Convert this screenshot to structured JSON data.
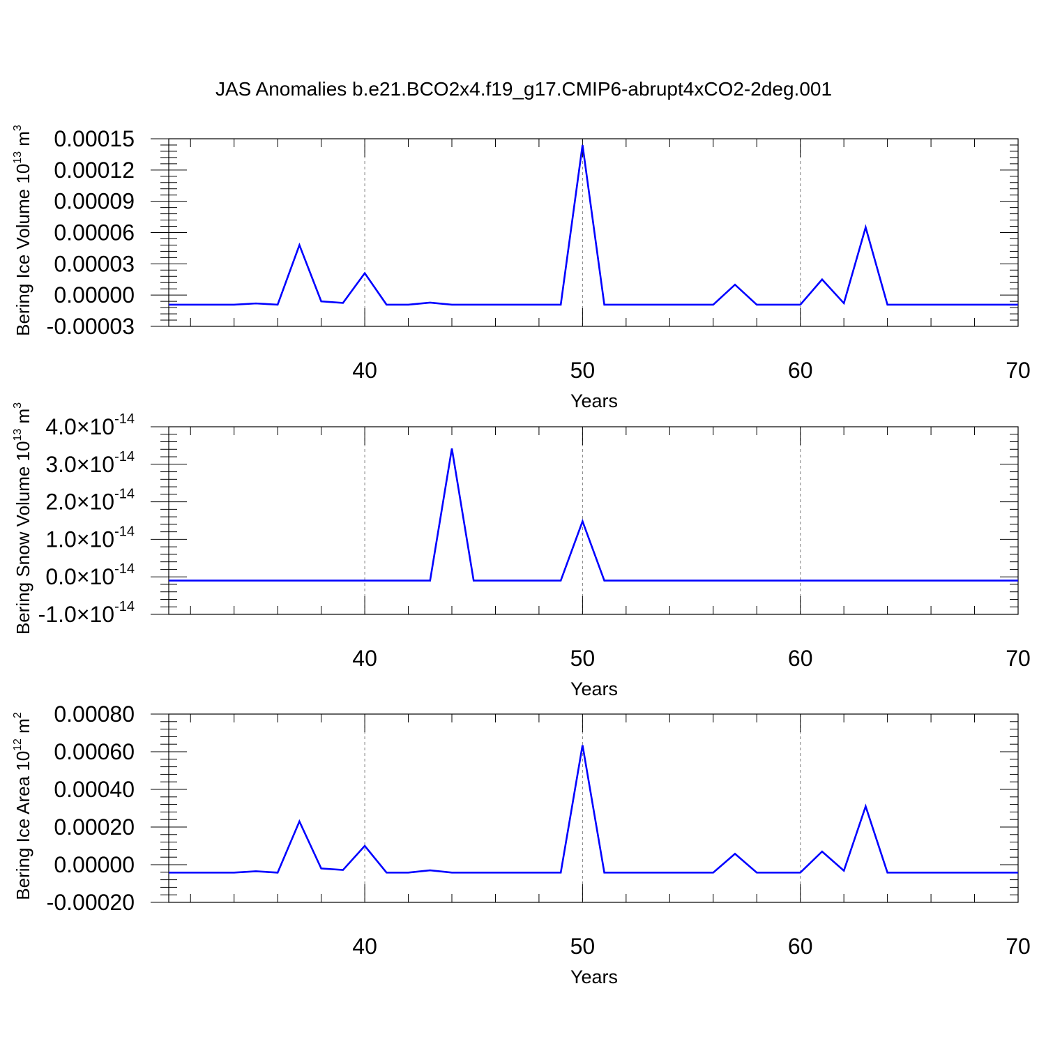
{
  "title": "JAS Anomalies b.e21.BCO2x4.f19_g17.CMIP6-abrupt4xCO2-2deg.001",
  "colors": {
    "line": "#0000ff",
    "axis": "#000000",
    "grid": "#808080"
  },
  "chart_data": [
    {
      "type": "line",
      "ylabel": "Bering Ice Volume 10",
      "ylabel_sup": "13",
      "ylabel_unit": " m",
      "ylabel_unit_sup": "3",
      "xlabel": "Years",
      "xlim": [
        31,
        70
      ],
      "ylim": [
        -3e-05,
        0.00015
      ],
      "xticks": [
        "40",
        "50",
        "60",
        "70"
      ],
      "yticks": [
        "-0.00003",
        "0.00000",
        "0.00003",
        "0.00006",
        "0.00009",
        "0.00012",
        "0.00015"
      ],
      "grid_x": [
        40,
        50,
        60
      ],
      "x": [
        31,
        32,
        33,
        34,
        35,
        36,
        37,
        38,
        39,
        40,
        41,
        42,
        43,
        44,
        45,
        46,
        47,
        48,
        49,
        50,
        51,
        52,
        53,
        54,
        55,
        56,
        57,
        58,
        59,
        60,
        61,
        62,
        63,
        64,
        65,
        66,
        67,
        68,
        69,
        70
      ],
      "series": [
        {
          "values": [
            -9.2e-06,
            -9.2e-06,
            -9.2e-06,
            -9.2e-06,
            -8e-06,
            -9.2e-06,
            4.8e-05,
            -6e-06,
            -7.5e-06,
            2.1e-05,
            -9.2e-06,
            -9.2e-06,
            -7.2e-06,
            -9.2e-06,
            -9.2e-06,
            -9.2e-06,
            -9.2e-06,
            -9.2e-06,
            -9.2e-06,
            0.000144,
            -9.2e-06,
            -9.2e-06,
            -9.2e-06,
            -9.2e-06,
            -9.2e-06,
            -9.2e-06,
            1e-05,
            -9.2e-06,
            -9.2e-06,
            -9.2e-06,
            1.5e-05,
            -7.8e-06,
            6.5e-05,
            -9.2e-06,
            -9.2e-06,
            -9.2e-06,
            -9.2e-06,
            -9.2e-06,
            -9.2e-06,
            -9.2e-06
          ]
        }
      ]
    },
    {
      "type": "line",
      "ylabel": "Bering Snow Volume 10",
      "ylabel_sup": "13",
      "ylabel_unit": " m",
      "ylabel_unit_sup": "3",
      "xlabel": "Years",
      "xlim": [
        31,
        70
      ],
      "ylim": [
        -1e-14,
        4e-14
      ],
      "xticks": [
        "40",
        "50",
        "60",
        "70"
      ],
      "yticks": [
        {
          "mant": "-1.0",
          "exp": "-14"
        },
        {
          "mant": "0.0",
          "exp": "-14"
        },
        {
          "mant": "1.0",
          "exp": "-14"
        },
        {
          "mant": "2.0",
          "exp": "-14"
        },
        {
          "mant": "3.0",
          "exp": "-14"
        },
        {
          "mant": "4.0",
          "exp": "-14"
        }
      ],
      "grid_x": [
        40,
        50,
        60
      ],
      "x": [
        31,
        32,
        33,
        34,
        35,
        36,
        37,
        38,
        39,
        40,
        41,
        42,
        43,
        44,
        45,
        46,
        47,
        48,
        49,
        50,
        51,
        52,
        53,
        54,
        55,
        56,
        57,
        58,
        59,
        60,
        61,
        62,
        63,
        64,
        65,
        66,
        67,
        68,
        69,
        70
      ],
      "series": [
        {
          "values": [
            -1e-15,
            -1e-15,
            -1e-15,
            -1e-15,
            -1e-15,
            -1e-15,
            -1e-15,
            -1e-15,
            -1e-15,
            -1e-15,
            -1e-15,
            -1e-15,
            -1e-15,
            3.42e-14,
            -1e-15,
            -1e-15,
            -1e-15,
            -1e-15,
            -1e-15,
            1.48e-14,
            -1e-15,
            -1e-15,
            -1e-15,
            -1e-15,
            -1e-15,
            -1e-15,
            -1e-15,
            -1e-15,
            -1e-15,
            -1e-15,
            -1e-15,
            -1e-15,
            -1e-15,
            -1e-15,
            -1e-15,
            -1e-15,
            -1e-15,
            -1e-15,
            -1e-15,
            -1e-15
          ]
        }
      ]
    },
    {
      "type": "line",
      "ylabel": "Bering Ice Area 10",
      "ylabel_sup": "12",
      "ylabel_unit": " m",
      "ylabel_unit_sup": "2",
      "xlabel": "Years",
      "xlim": [
        31,
        70
      ],
      "ylim": [
        -0.0002,
        0.0008
      ],
      "xticks": [
        "40",
        "50",
        "60",
        "70"
      ],
      "yticks": [
        "-0.00020",
        "0.00000",
        "0.00020",
        "0.00040",
        "0.00060",
        "0.00080"
      ],
      "grid_x": [
        40,
        50,
        60
      ],
      "x": [
        31,
        32,
        33,
        34,
        35,
        36,
        37,
        38,
        39,
        40,
        41,
        42,
        43,
        44,
        45,
        46,
        47,
        48,
        49,
        50,
        51,
        52,
        53,
        54,
        55,
        56,
        57,
        58,
        59,
        60,
        61,
        62,
        63,
        64,
        65,
        66,
        67,
        68,
        69,
        70
      ],
      "series": [
        {
          "values": [
            -4.2e-05,
            -4.2e-05,
            -4.2e-05,
            -4.2e-05,
            -3.5e-05,
            -4.2e-05,
            0.00023,
            -2e-05,
            -2.8e-05,
            0.0001,
            -4.2e-05,
            -4.2e-05,
            -3e-05,
            -4.2e-05,
            -4.2e-05,
            -4.2e-05,
            -4.2e-05,
            -4.2e-05,
            -4.2e-05,
            0.000635,
            -4.2e-05,
            -4.2e-05,
            -4.2e-05,
            -4.2e-05,
            -4.2e-05,
            -4.2e-05,
            5.8e-05,
            -4.2e-05,
            -4.2e-05,
            -4.2e-05,
            7e-05,
            -3.2e-05,
            0.00031,
            -4.2e-05,
            -4.2e-05,
            -4.2e-05,
            -4.2e-05,
            -4.2e-05,
            -4.2e-05,
            -4.2e-05
          ]
        }
      ]
    }
  ]
}
